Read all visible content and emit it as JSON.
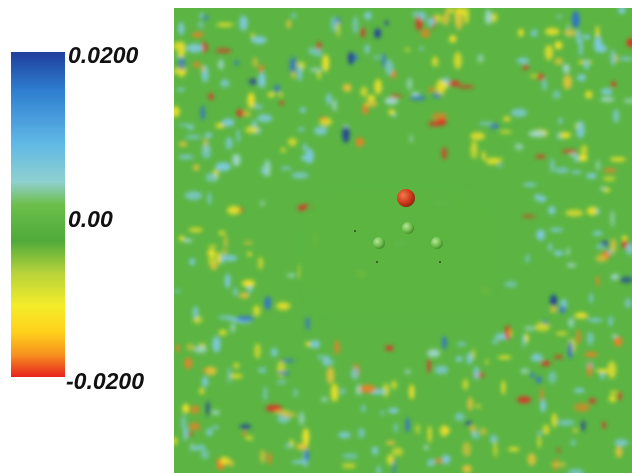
{
  "colorbar": {
    "max_label": "0.0200",
    "mid_label": "0.00",
    "min_label": "-0.0200",
    "max_value": 0.02,
    "mid_value": 0.0,
    "min_value": -0.02,
    "gradient_stops": [
      "#1f3f9c",
      "#2f7ed0",
      "#5fb8e6",
      "#8fd0cf",
      "#6cbf4a",
      "#4faa3a",
      "#b7d33a",
      "#f4ec2a",
      "#ffd21a",
      "#f7931e",
      "#e8231f"
    ]
  },
  "field": {
    "background_color": "#5cb543",
    "spheres": [
      {
        "color": "#d03a1c"
      },
      {
        "color": "#7dc25a"
      },
      {
        "color": "#7dc25a"
      },
      {
        "color": "#7dc25a"
      }
    ]
  }
}
